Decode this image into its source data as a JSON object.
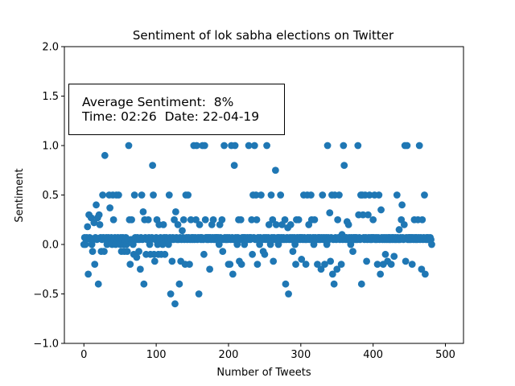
{
  "chart_data": {
    "type": "scatter",
    "title": "Sentiment of lok sabha elections on Twitter",
    "xlabel": "Number of Tweets",
    "ylabel": "Sentiment",
    "xlim": [
      -27,
      525
    ],
    "ylim": [
      -1.0,
      2.0
    ],
    "xticks": [
      0,
      100,
      200,
      300,
      400,
      500
    ],
    "yticks": [
      -1.0,
      -0.5,
      0.0,
      0.5,
      1.0,
      1.5,
      2.0
    ],
    "ytick_labels": [
      "−1.0",
      "−0.5",
      "0.0",
      "0.5",
      "1.0",
      "1.5",
      "2.0"
    ],
    "marker_color": "#1f77b4",
    "grid": false,
    "annotation": {
      "line1": "Average Sentiment:  8%",
      "line2": "Time: 02:26  Date: 22-04-19"
    },
    "y_values": [
      0,
      0.07,
      0,
      0.05,
      0.07,
      0.18,
      -0.3,
      0.3,
      0.07,
      0.05,
      0.27,
      0,
      -0.07,
      0.05,
      0.22,
      -0.2,
      0.07,
      0.4,
      0.05,
      0.27,
      -0.4,
      0.3,
      0.2,
      0.07,
      -0.07,
      0.05,
      0.5,
      0.07,
      -0.07,
      0.9,
      0.05,
      0.07,
      0,
      0.05,
      0.07,
      0.5,
      0.37,
      0.05,
      0.07,
      0,
      0.5,
      0.25,
      0.05,
      0.07,
      0,
      0.5,
      0.05,
      0.07,
      0.5,
      0.05,
      0,
      0.07,
      -0.07,
      0.05,
      0.07,
      0,
      -0.07,
      0.05,
      0.07,
      0,
      -0.07,
      0.05,
      1.0,
      0.25,
      -0.2,
      0.05,
      0.25,
      0.05,
      0,
      -0.1,
      0.5,
      0.07,
      0.05,
      -0.13,
      0.07,
      0.05,
      -0.07,
      0.05,
      -0.25,
      0.07,
      0.5,
      0.05,
      0.33,
      -0.4,
      0.25,
      0.07,
      -0.1,
      0.05,
      0.05,
      0.25,
      0.07,
      0,
      -0.1,
      0.05,
      0.07,
      0.8,
      0.5,
      -0.1,
      -0.17,
      0.05,
      0.07,
      0.25,
      0,
      -0.1,
      0.2,
      0.05,
      0.07,
      -0.1,
      0.05,
      0,
      0.2,
      0.07,
      -0.1,
      0.05,
      0.07,
      0.05,
      0.05,
      0,
      0.5,
      0.07,
      -0.5,
      0.05,
      -0.17,
      0.07,
      0.05,
      0.25,
      -0.6,
      0.33,
      0.07,
      0.05,
      0.2,
      0.05,
      -0.4,
      0.07,
      -0.17,
      0.05,
      0.14,
      0.07,
      0.25,
      0.05,
      -0.2,
      0.5,
      0.07,
      0.05,
      0.5,
      0.07,
      -0.2,
      0.05,
      0.25,
      0.07,
      0.05,
      0.07,
      1.0,
      0.05,
      0.07,
      0.25,
      1.0,
      0.05,
      0.07,
      -0.5,
      0.2,
      0.07,
      0.05,
      0.07,
      1.0,
      0.05,
      -0.1,
      1.0,
      0.25,
      0.07,
      0.05,
      0.07,
      0.05,
      0.07,
      -0.25,
      0.07,
      0.05,
      0.2,
      0.07,
      0.25,
      0.05,
      0.07,
      0.05,
      0.07,
      0.07,
      0.05,
      0.07,
      0,
      0.2,
      0.07,
      0.05,
      0.25,
      -0.07,
      0.05,
      1.0,
      0.07,
      0.05,
      0.05,
      0.07,
      0.05,
      -0.2,
      0.07,
      -0.2,
      0.05,
      1.0,
      0.07,
      -0.3,
      0.05,
      0.8,
      1.0,
      0.07,
      0.05,
      0,
      0.07,
      0.25,
      -0.17,
      0.05,
      0.25,
      -0.2,
      0.07,
      0.05,
      0.07,
      0,
      0.07,
      0.05,
      0.05,
      0.07,
      0.05,
      1.0,
      0.07,
      0.05,
      0.07,
      0.25,
      -0.1,
      0.5,
      0.07,
      1.0,
      0.05,
      0.5,
      0.25,
      -0.2,
      0.07,
      0.05,
      0,
      0.07,
      0.5,
      0.05,
      0.05,
      -0.07,
      0.07,
      -0.1,
      0.05,
      0.07,
      1.0,
      0.05,
      0.07,
      0.2,
      0.05,
      0,
      0.5,
      0.07,
      0.25,
      -0.17,
      0.07,
      0.05,
      0.75,
      0.2,
      0.05,
      0.07,
      0,
      0.07,
      0.05,
      0.5,
      0.07,
      0.2,
      0.05,
      0.07,
      0.05,
      0.25,
      -0.4,
      0.05,
      0.07,
      0.17,
      -0.5,
      0.05,
      0.07,
      0.2,
      0.05,
      0.07,
      -0.07,
      0.05,
      0.07,
      0,
      -0.2,
      0.25,
      0.07,
      0.05,
      0.25,
      0.07,
      0.05,
      0.07,
      -0.15,
      0.07,
      0.05,
      0.5,
      0.07,
      0.05,
      -0.2,
      0.05,
      0.5,
      0.07,
      0.2,
      0.05,
      0.07,
      0.5,
      0.25,
      0.05,
      0.07,
      0,
      0.25,
      0.07,
      0.05,
      0.05,
      -0.2,
      0.07,
      0.05,
      0.07,
      0.05,
      -0.25,
      0.07,
      0.5,
      0.05,
      0.07,
      -0.2,
      0.05,
      0.07,
      0,
      1.0,
      0.07,
      0.05,
      0.32,
      -0.17,
      0.07,
      0.5,
      -0.3,
      0.05,
      -0.4,
      0.5,
      0.07,
      0.05,
      -0.25,
      0.25,
      0.07,
      0.5,
      0.05,
      0.07,
      -0.2,
      0.1,
      0.05,
      1.0,
      0.8,
      0.07,
      0.05,
      0.07,
      0.23,
      0.05,
      0.2,
      0.07,
      0.05,
      0,
      0.07,
      0.05,
      -0.07,
      0.07,
      0.05,
      0.07,
      0.05,
      0.07,
      0.05,
      1.0,
      0.3,
      0.07,
      0.05,
      0.5,
      -0.4,
      0.5,
      0.3,
      0.07,
      0.05,
      0.5,
      0.07,
      -0.17,
      0.05,
      0.3,
      0.07,
      0.5,
      0.05,
      0.07,
      0.05,
      0.07,
      0.25,
      0.07,
      0.5,
      0.05,
      0.07,
      0.05,
      -0.2,
      0.07,
      0.5,
      0.05,
      -0.3,
      0.35,
      0.07,
      0.05,
      -0.2,
      0.07,
      0.05,
      -0.1,
      0.07,
      0.05,
      -0.17,
      0.07,
      0.05,
      0.07,
      0.05,
      -0.2,
      0.07,
      0.05,
      0.07,
      -0.12,
      0.05,
      0.07,
      0.05,
      0.5,
      0.07,
      0.05,
      0.15,
      0.05,
      0.07,
      0.25,
      0.4,
      0.07,
      0.05,
      0.2,
      1.0,
      -0.17,
      0.07,
      1.0,
      0.05,
      0.07,
      0.05,
      0.07,
      0.05,
      0.07,
      -0.2,
      0.07,
      0.05,
      0.25,
      0.07,
      0.05,
      0.07,
      0.05,
      0.25,
      0.07,
      1.0,
      0.05,
      0.07,
      -0.25,
      0.25,
      0.05,
      0.07,
      0.5,
      -0.3,
      0.05,
      0.07,
      0.05,
      0.07,
      0.05,
      0.05,
      0.07,
      0.05,
      0
    ]
  }
}
